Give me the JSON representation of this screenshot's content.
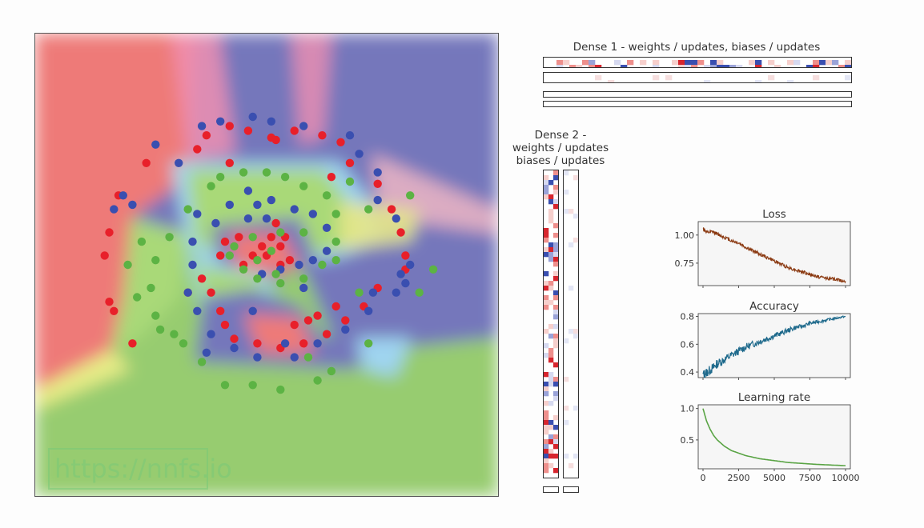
{
  "watermark": "https://nnfs.io",
  "colors": {
    "red": "#e8202a",
    "blue": "#3a4fb0",
    "green": "#5cb344",
    "region_red": "#ee7a78",
    "region_blue": "#7577bb",
    "region_green": "#97cc6f",
    "loss": "#8b3a12",
    "accuracy": "#1f6a8c",
    "lr": "#5aa445"
  },
  "dense1": {
    "title": "Dense 1 - weights / updates, biases / updates"
  },
  "dense2": {
    "title_lines": [
      "Dense 2 -",
      "weights / updates",
      "biases / updates"
    ]
  },
  "chart_data": [
    {
      "type": "scatter",
      "title": "",
      "xlim": [
        -1,
        1
      ],
      "ylim": [
        -1,
        1
      ],
      "series": [
        {
          "color": "red",
          "points": [
            [
              -0.26,
              0.56
            ],
            [
              -0.16,
              0.6
            ],
            [
              -0.08,
              0.58
            ],
            [
              0.02,
              0.55
            ],
            [
              0.12,
              0.58
            ],
            [
              0.24,
              0.56
            ],
            [
              0.32,
              0.53
            ],
            [
              0.36,
              0.44
            ],
            [
              0.48,
              0.35
            ],
            [
              0.54,
              0.24
            ],
            [
              0.58,
              0.14
            ],
            [
              0.6,
              0.04
            ],
            [
              0.6,
              -0.02
            ],
            [
              0.48,
              -0.1
            ],
            [
              0.34,
              -0.24
            ],
            [
              0.26,
              -0.3
            ],
            [
              0.16,
              -0.34
            ],
            [
              0.06,
              -0.36
            ],
            [
              -0.04,
              -0.34
            ],
            [
              -0.14,
              -0.32
            ],
            [
              -0.2,
              -0.2
            ],
            [
              -0.24,
              -0.12
            ],
            [
              -0.28,
              -0.06
            ],
            [
              -0.34,
              -0.12
            ],
            [
              -0.52,
              0.44
            ],
            [
              -0.64,
              0.3
            ],
            [
              -0.68,
              0.14
            ],
            [
              -0.7,
              0.04
            ],
            [
              -0.68,
              -0.16
            ],
            [
              -0.66,
              -0.2
            ],
            [
              -0.58,
              -0.34
            ],
            [
              -0.1,
              0.0
            ],
            [
              -0.06,
              0.04
            ],
            [
              0.0,
              0.04
            ],
            [
              0.06,
              0.08
            ],
            [
              0.08,
              0.12
            ],
            [
              0.04,
              0.18
            ],
            [
              0.02,
              0.12
            ],
            [
              -0.02,
              0.08
            ],
            [
              0.1,
              0.02
            ],
            [
              0.06,
              0.0
            ],
            [
              -0.12,
              0.12
            ],
            [
              -0.18,
              0.1
            ],
            [
              -0.2,
              0.04
            ],
            [
              0.18,
              -0.24
            ],
            [
              0.22,
              -0.22
            ],
            [
              0.3,
              -0.18
            ],
            [
              0.12,
              -0.26
            ],
            [
              -0.18,
              -0.26
            ],
            [
              -0.16,
              0.44
            ],
            [
              0.42,
              -0.18
            ],
            [
              0.28,
              0.38
            ],
            [
              0.04,
              0.54
            ],
            [
              -0.3,
              0.5
            ]
          ]
        },
        {
          "color": "blue",
          "points": [
            [
              -0.28,
              0.6
            ],
            [
              -0.2,
              0.62
            ],
            [
              -0.06,
              0.64
            ],
            [
              0.02,
              0.62
            ],
            [
              0.16,
              0.6
            ],
            [
              0.36,
              0.56
            ],
            [
              0.4,
              0.48
            ],
            [
              0.48,
              0.4
            ],
            [
              0.56,
              0.2
            ],
            [
              0.62,
              0.0
            ],
            [
              0.6,
              -0.08
            ],
            [
              0.56,
              -0.12
            ],
            [
              0.44,
              -0.2
            ],
            [
              0.34,
              -0.28
            ],
            [
              0.22,
              -0.34
            ],
            [
              0.12,
              -0.4
            ],
            [
              -0.04,
              -0.4
            ],
            [
              -0.14,
              -0.36
            ],
            [
              -0.24,
              -0.3
            ],
            [
              -0.3,
              -0.2
            ],
            [
              -0.34,
              -0.12
            ],
            [
              -0.32,
              0.0
            ],
            [
              -0.22,
              0.18
            ],
            [
              -0.16,
              0.26
            ],
            [
              -0.08,
              0.32
            ],
            [
              0.02,
              0.28
            ],
            [
              0.12,
              0.24
            ],
            [
              0.2,
              0.22
            ],
            [
              0.26,
              0.16
            ],
            [
              0.26,
              0.06
            ],
            [
              0.2,
              0.02
            ],
            [
              0.14,
              0.0
            ],
            [
              0.06,
              -0.02
            ],
            [
              -0.02,
              -0.04
            ],
            [
              -0.08,
              0.2
            ],
            [
              0.0,
              0.2
            ],
            [
              -0.04,
              0.26
            ],
            [
              -0.38,
              0.44
            ],
            [
              -0.48,
              0.52
            ],
            [
              -0.58,
              0.26
            ],
            [
              -0.66,
              0.24
            ],
            [
              -0.62,
              0.3
            ],
            [
              -0.3,
              0.22
            ],
            [
              -0.32,
              0.1
            ],
            [
              0.46,
              -0.12
            ],
            [
              0.58,
              -0.04
            ],
            [
              0.48,
              0.28
            ],
            [
              0.16,
              -0.1
            ],
            [
              -0.06,
              -0.2
            ],
            [
              -0.26,
              -0.38
            ],
            [
              0.08,
              -0.34
            ]
          ]
        },
        {
          "color": "green",
          "points": [
            [
              -0.2,
              0.38
            ],
            [
              -0.1,
              0.4
            ],
            [
              0.0,
              0.4
            ],
            [
              0.08,
              0.38
            ],
            [
              0.16,
              0.34
            ],
            [
              0.26,
              0.3
            ],
            [
              0.3,
              0.22
            ],
            [
              0.3,
              0.1
            ],
            [
              0.24,
              0.0
            ],
            [
              0.16,
              -0.06
            ],
            [
              0.06,
              -0.08
            ],
            [
              -0.04,
              -0.06
            ],
            [
              -0.1,
              -0.02
            ],
            [
              -0.14,
              0.08
            ],
            [
              -0.04,
              0.02
            ],
            [
              0.04,
              -0.04
            ],
            [
              0.02,
              0.06
            ],
            [
              -0.24,
              0.34
            ],
            [
              -0.34,
              0.24
            ],
            [
              -0.42,
              0.12
            ],
            [
              -0.48,
              0.02
            ],
            [
              -0.5,
              -0.1
            ],
            [
              -0.48,
              -0.22
            ],
            [
              -0.36,
              -0.34
            ],
            [
              -0.28,
              -0.42
            ],
            [
              -0.18,
              -0.52
            ],
            [
              -0.06,
              -0.52
            ],
            [
              0.06,
              -0.54
            ],
            [
              0.22,
              -0.5
            ],
            [
              0.28,
              -0.46
            ],
            [
              0.44,
              -0.34
            ],
            [
              0.62,
              0.3
            ],
            [
              0.66,
              -0.12
            ],
            [
              0.72,
              -0.02
            ],
            [
              0.4,
              -0.12
            ],
            [
              0.16,
              0.14
            ],
            [
              0.06,
              0.14
            ],
            [
              -0.06,
              0.12
            ],
            [
              0.36,
              0.36
            ],
            [
              0.44,
              0.24
            ],
            [
              -0.54,
              0.1
            ],
            [
              -0.6,
              0.0
            ],
            [
              -0.56,
              -0.14
            ],
            [
              -0.4,
              -0.3
            ],
            [
              -0.46,
              -0.28
            ],
            [
              0.18,
              -0.4
            ],
            [
              0.3,
              0.02
            ],
            [
              -0.16,
              0.04
            ]
          ]
        }
      ]
    },
    {
      "type": "line",
      "title": "Loss",
      "xlim": [
        0,
        10000
      ],
      "ylim": [
        0.55,
        1.12
      ],
      "yticks": [
        "1.00",
        "0.75"
      ],
      "ytick_values": [
        1.0,
        0.75
      ],
      "x": [
        0,
        300,
        700,
        1000,
        1500,
        2000,
        2500,
        3000,
        3500,
        4000,
        4500,
        5000,
        5500,
        6000,
        6500,
        7000,
        7500,
        8000,
        8500,
        9000,
        9500,
        10000
      ],
      "values": [
        1.06,
        1.02,
        1.03,
        1.01,
        0.98,
        0.95,
        0.93,
        0.89,
        0.86,
        0.83,
        0.8,
        0.77,
        0.74,
        0.71,
        0.69,
        0.67,
        0.65,
        0.63,
        0.62,
        0.61,
        0.6,
        0.59
      ]
    },
    {
      "type": "line",
      "title": "Accuracy",
      "xlim": [
        0,
        10000
      ],
      "ylim": [
        0.36,
        0.82
      ],
      "yticks": [
        "0.8",
        "0.6",
        "0.4"
      ],
      "ytick_values": [
        0.8,
        0.6,
        0.4
      ],
      "x": [
        0,
        300,
        700,
        1000,
        1500,
        2000,
        2500,
        3000,
        3500,
        4000,
        4500,
        5000,
        5500,
        6000,
        6500,
        7000,
        7500,
        8000,
        8500,
        9000,
        9500,
        10000
      ],
      "values": [
        0.38,
        0.4,
        0.43,
        0.46,
        0.49,
        0.52,
        0.55,
        0.58,
        0.6,
        0.62,
        0.64,
        0.66,
        0.68,
        0.7,
        0.72,
        0.73,
        0.75,
        0.76,
        0.77,
        0.78,
        0.79,
        0.8
      ]
    },
    {
      "type": "line",
      "title": "Learning rate",
      "xlim": [
        0,
        10000
      ],
      "ylim": [
        0.04,
        1.06
      ],
      "yticks": [
        "1.0",
        "0.5"
      ],
      "ytick_values": [
        1.0,
        0.5
      ],
      "xticks": [
        "0",
        "2500",
        "5000",
        "7500",
        "10000"
      ],
      "xtick_values": [
        0,
        2500,
        5000,
        7500,
        10000
      ],
      "x": [
        0,
        250,
        500,
        750,
        1000,
        1500,
        2000,
        2500,
        3000,
        4000,
        5000,
        6000,
        7000,
        8000,
        9000,
        10000
      ],
      "values": [
        1.0,
        0.8,
        0.67,
        0.57,
        0.5,
        0.4,
        0.33,
        0.29,
        0.25,
        0.2,
        0.17,
        0.14,
        0.125,
        0.11,
        0.1,
        0.09
      ]
    }
  ]
}
